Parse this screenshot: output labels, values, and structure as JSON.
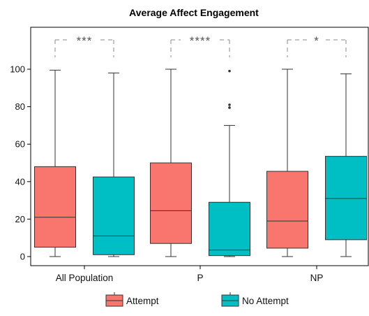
{
  "chart_data": {
    "type": "boxplot",
    "title": "Average Affect Engagement",
    "xlabel": "",
    "ylabel": "",
    "ylim": [
      -3,
      122
    ],
    "yticks": [
      0,
      20,
      40,
      60,
      80,
      100
    ],
    "categories": [
      "All Population",
      "P",
      "NP"
    ],
    "series": [
      {
        "name": "Attempt",
        "color": "#F8766D",
        "boxes": [
          {
            "category": "All Population",
            "min": 0,
            "q1": 5,
            "median": 21,
            "q3": 48,
            "max": 99.5,
            "outliers": []
          },
          {
            "category": "P",
            "min": 0,
            "q1": 7,
            "median": 24.5,
            "q3": 50,
            "max": 100,
            "outliers": []
          },
          {
            "category": "NP",
            "min": 0,
            "q1": 4.5,
            "median": 19,
            "q3": 45.5,
            "max": 100,
            "outliers": []
          }
        ]
      },
      {
        "name": "No Attempt",
        "color": "#00BFC4",
        "boxes": [
          {
            "category": "All Population",
            "min": 0,
            "q1": 1,
            "median": 11,
            "q3": 42.5,
            "max": 98,
            "outliers": []
          },
          {
            "category": "P",
            "min": 0,
            "q1": 0.5,
            "median": 3.5,
            "q3": 29,
            "max": 70,
            "outliers": [
              79.5,
              81,
              99
            ]
          },
          {
            "category": "NP",
            "min": 0,
            "q1": 9,
            "median": 31,
            "q3": 53.5,
            "max": 97.5,
            "outliers": []
          }
        ]
      }
    ],
    "significance": [
      {
        "category": "All Population",
        "label": "***"
      },
      {
        "category": "P",
        "label": "****"
      },
      {
        "category": "NP",
        "label": "*"
      }
    ],
    "legend": {
      "placement": "bottom",
      "entries": [
        "Attempt",
        "No Attempt"
      ]
    },
    "grid": false
  }
}
